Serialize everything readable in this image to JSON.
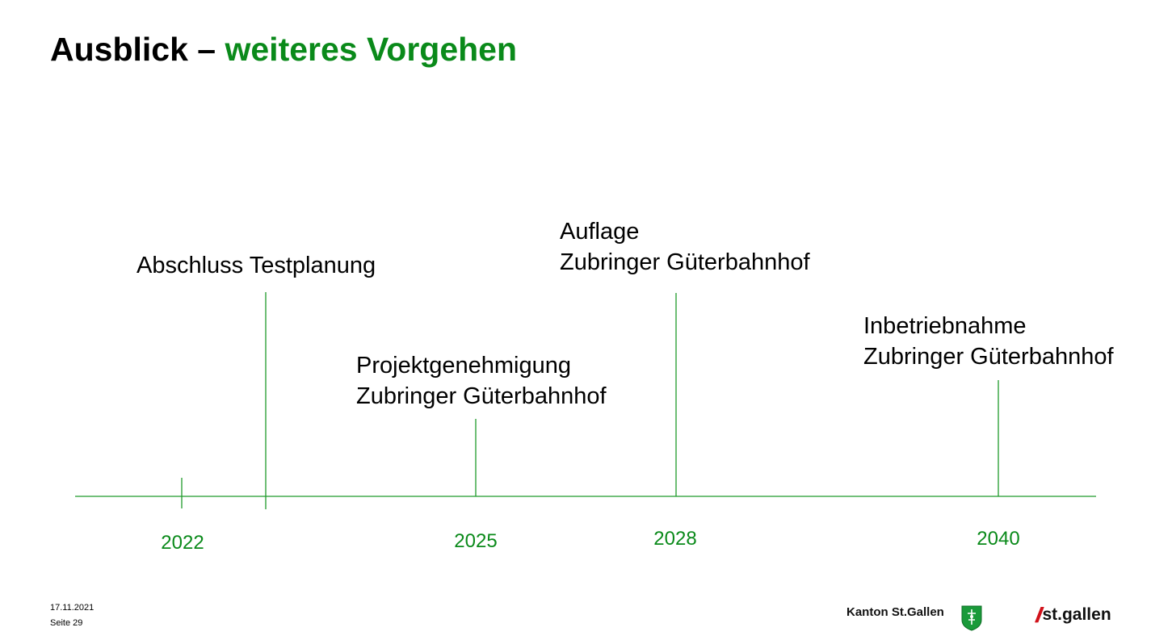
{
  "slide": {
    "title_main": "Ausblick – ",
    "title_accent": "weiteres Vorgehen",
    "accent_color": "#0a8a1a"
  },
  "timeline": {
    "years": [
      "2022",
      "2025",
      "2028",
      "2040"
    ],
    "milestones": [
      {
        "line1": "Abschluss Testplanung",
        "line2": ""
      },
      {
        "line1": "Projektgenehmigung",
        "line2": "Zubringer Güterbahnhof"
      },
      {
        "line1": "Auflage",
        "line2": "Zubringer Güterbahnhof"
      },
      {
        "line1": "Inbetriebnahme",
        "line2": "Zubringer Güterbahnhof"
      }
    ]
  },
  "footer": {
    "date": "17.11.2021",
    "page": "Seite 29",
    "kanton": "Kanton St.Gallen",
    "city_slashes": "//",
    "city_word": "st.gallen",
    "city_slash_color": "#d1121b",
    "shield_icon": "stgallen-coat-of-arms-icon"
  }
}
